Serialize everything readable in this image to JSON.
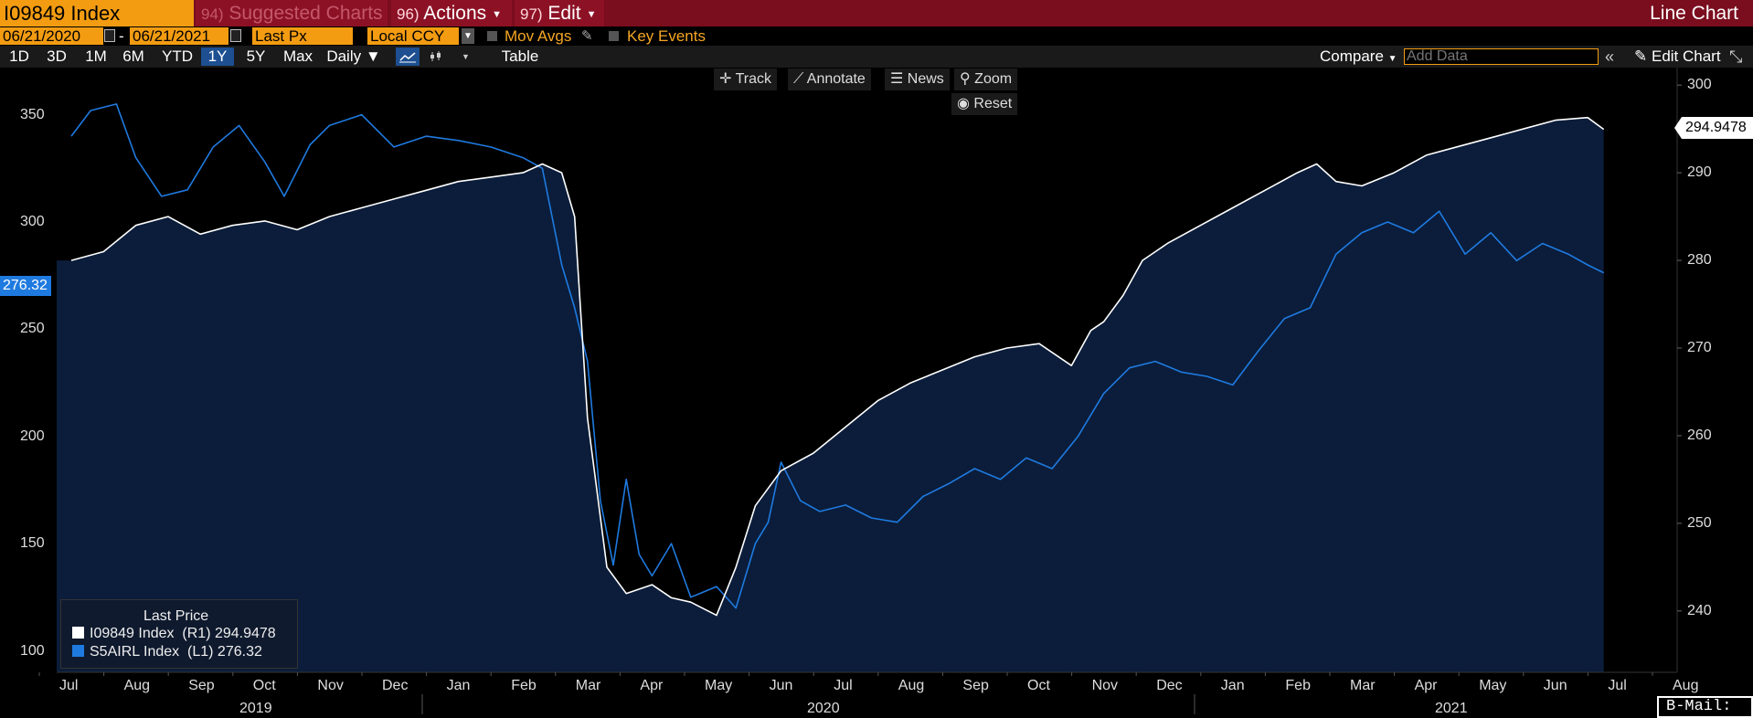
{
  "header": {
    "ticker": "I09849 Index",
    "suggested_num": "94)",
    "suggested_label": "Suggested Charts",
    "actions_num": "96)",
    "actions_label": "Actions",
    "edit_num": "97)",
    "edit_label": "Edit",
    "chart_title": "Line Chart"
  },
  "controls": {
    "start_date": "06/21/2020",
    "end_date": "06/21/2021",
    "field": "Last Px",
    "currency": "Local CCY",
    "mov_avgs": "Mov Avgs",
    "key_events": "Key Events"
  },
  "periods": [
    "1D",
    "3D",
    "1M",
    "6M",
    "YTD",
    "1Y",
    "5Y",
    "Max"
  ],
  "selected_period": "1Y",
  "frequency": "Daily",
  "table_label": "Table",
  "compare_label": "Compare",
  "add_data_placeholder": "Add Data",
  "edit_chart_label": "Edit Chart",
  "tools": {
    "track": "Track",
    "annotate": "Annotate",
    "news": "News",
    "zoom": "Zoom",
    "reset": "Reset"
  },
  "legend": {
    "title": "Last Price",
    "series1": "I09849 Index  (R1) 294.9478",
    "series2": "S5AIRL Index  (L1) 276.32"
  },
  "last_values": {
    "left": "276.32",
    "right": "294.9478"
  },
  "bmail": "B-Mail:",
  "colors": {
    "header_bg": "#7a0d1e",
    "accent_orange": "#f39c12",
    "series_white": "#ffffff",
    "series_blue": "#1f7ae0",
    "area_fill": "#0b1d3a"
  },
  "chart_data": {
    "type": "line",
    "x_labels": [
      "Jul",
      "Aug",
      "Sep",
      "Oct",
      "Nov",
      "Dec",
      "Jan",
      "Feb",
      "Mar",
      "Apr",
      "May",
      "Jun",
      "Jul",
      "Aug",
      "Sep",
      "Oct",
      "Nov",
      "Dec",
      "Jan",
      "Feb",
      "Mar",
      "Apr",
      "May",
      "Jun",
      "Jul",
      "Aug"
    ],
    "year_labels": [
      "2019",
      "2020",
      "2021"
    ],
    "left_axis": {
      "ticks": [
        100,
        150,
        200,
        250,
        300,
        350
      ],
      "range": [
        90,
        372
      ]
    },
    "right_axis": {
      "ticks": [
        240,
        250,
        260,
        270,
        280,
        290,
        300
      ],
      "range": [
        233,
        302
      ]
    },
    "series": [
      {
        "name": "I09849 Index (R1)",
        "axis": "right",
        "x_month_index": [
          0,
          0.5,
          1,
          1.5,
          2,
          2.5,
          3,
          3.5,
          4,
          4.5,
          5,
          5.5,
          6,
          6.5,
          7,
          7.3,
          7.6,
          7.8,
          8.0,
          8.3,
          8.6,
          9.0,
          9.3,
          9.6,
          10.0,
          10.3,
          10.6,
          11.0,
          11.5,
          12.0,
          12.5,
          13.0,
          13.5,
          14.0,
          14.5,
          15.0,
          15.5,
          15.8,
          16.0,
          16.3,
          16.6,
          17.0,
          17.5,
          18.0,
          18.5,
          19.0,
          19.3,
          19.6,
          20.0,
          20.5,
          21.0,
          21.5,
          22.0,
          22.5,
          23.0,
          23.5,
          23.75
        ],
        "values": [
          280,
          281,
          284,
          285,
          283,
          284,
          284.5,
          283.5,
          285,
          286,
          287,
          288,
          289,
          289.5,
          290,
          291,
          290,
          285,
          262,
          245,
          242,
          243,
          241.5,
          241,
          239.5,
          245,
          252,
          256,
          258,
          261,
          264,
          266,
          267.5,
          269,
          270,
          270.5,
          268,
          272,
          273,
          276,
          280,
          282,
          284,
          286,
          288,
          290,
          291,
          289,
          288.5,
          290,
          292,
          293,
          294,
          295,
          296,
          296.3,
          294.95
        ]
      },
      {
        "name": "S5AIRL Index (L1)",
        "axis": "left",
        "x_month_index": [
          0,
          0.3,
          0.7,
          1.0,
          1.4,
          1.8,
          2.2,
          2.6,
          3.0,
          3.3,
          3.7,
          4.0,
          4.5,
          5.0,
          5.5,
          6.0,
          6.5,
          7.0,
          7.3,
          7.6,
          7.8,
          8.0,
          8.2,
          8.4,
          8.6,
          8.8,
          9.0,
          9.3,
          9.6,
          10.0,
          10.3,
          10.6,
          10.8,
          11.0,
          11.3,
          11.6,
          12.0,
          12.4,
          12.8,
          13.2,
          13.6,
          14.0,
          14.4,
          14.8,
          15.2,
          15.6,
          16.0,
          16.4,
          16.8,
          17.2,
          17.6,
          18.0,
          18.4,
          18.8,
          19.2,
          19.6,
          20.0,
          20.4,
          20.8,
          21.2,
          21.6,
          22.0,
          22.4,
          22.8,
          23.2,
          23.5,
          23.75
        ],
        "values": [
          340,
          352,
          355,
          330,
          312,
          315,
          335,
          345,
          328,
          312,
          336,
          345,
          350,
          335,
          340,
          338,
          335,
          330,
          325,
          280,
          260,
          235,
          170,
          140,
          180,
          145,
          135,
          150,
          125,
          130,
          120,
          150,
          160,
          188,
          170,
          165,
          168,
          162,
          160,
          172,
          178,
          185,
          180,
          190,
          185,
          200,
          220,
          232,
          235,
          230,
          228,
          224,
          240,
          255,
          260,
          285,
          295,
          300,
          295,
          305,
          285,
          295,
          282,
          290,
          285,
          280,
          276.32
        ]
      }
    ]
  }
}
